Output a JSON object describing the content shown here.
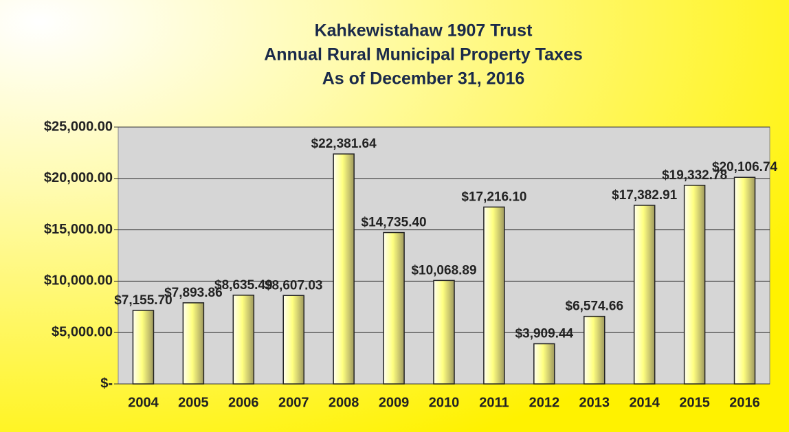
{
  "chart_data": {
    "type": "bar",
    "title": [
      "Kahkewistahaw 1907 Trust",
      "Annual Rural Municipal Property Taxes",
      "As of December 31, 2016"
    ],
    "categories": [
      "2004",
      "2005",
      "2006",
      "2007",
      "2008",
      "2009",
      "2010",
      "2011",
      "2012",
      "2013",
      "2014",
      "2015",
      "2016"
    ],
    "values": [
      7155.7,
      7893.86,
      8635.49,
      8607.03,
      22381.64,
      14735.4,
      10068.89,
      17216.1,
      3909.44,
      6574.66,
      17382.91,
      19332.78,
      20106.74
    ],
    "value_labels": [
      "$7,155.70",
      "$7,893.86",
      "$8,635.49",
      "$8,607.03",
      "$22,381.64",
      "$14,735.40",
      "$10,068.89",
      "$17,216.10",
      "$3,909.44",
      "$6,574.66",
      "$17,382.91",
      "$19,332.78",
      "$20,106.74"
    ],
    "color": "#ffff80",
    "ylim": [
      0,
      25000
    ],
    "yticks": [
      {
        "value": 0,
        "label": "$-"
      },
      {
        "value": 5000,
        "label": "$5,000.00"
      },
      {
        "value": 10000,
        "label": "$10,000.00"
      },
      {
        "value": 15000,
        "label": "$15,000.00"
      },
      {
        "value": 20000,
        "label": "$20,000.00"
      },
      {
        "value": 25000,
        "label": "$25,000.00"
      }
    ],
    "grid": true
  }
}
